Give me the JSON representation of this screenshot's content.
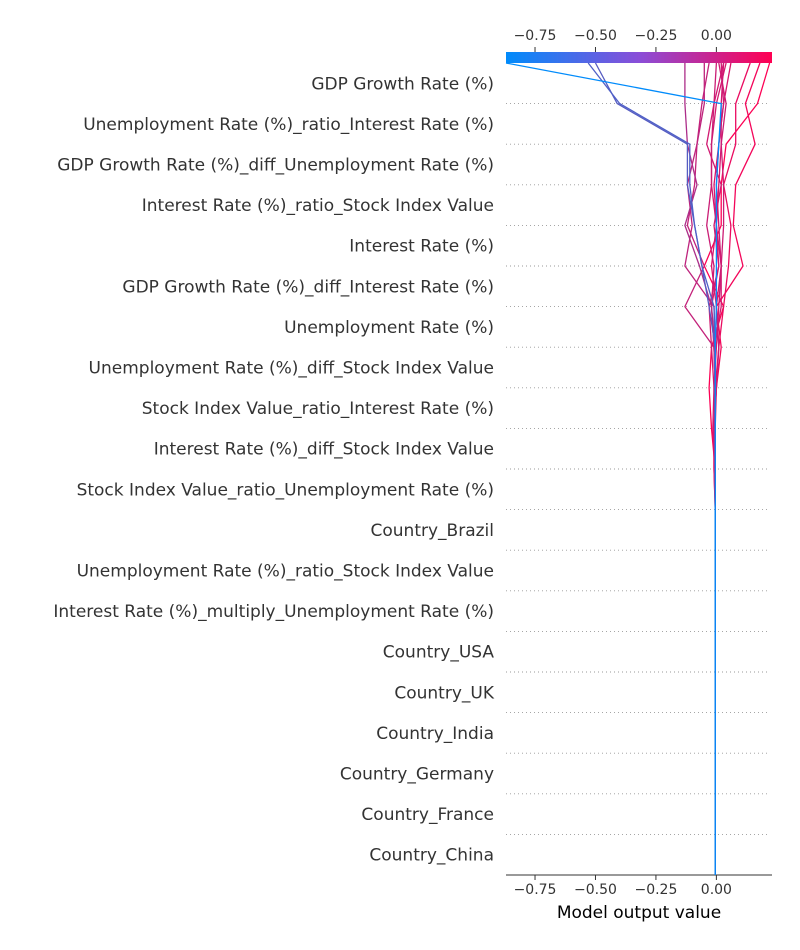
{
  "chart_data": {
    "type": "line",
    "chart_kind": "shap-decision-plot",
    "xlabel": "Model output value",
    "xlim": [
      -0.87,
      0.23
    ],
    "xticks": [
      -0.75,
      -0.5,
      -0.25,
      0.0
    ],
    "xtick_labels": [
      "−0.75",
      "−0.50",
      "−0.25",
      "0.00"
    ],
    "colorbar_ticks": [
      -0.75,
      -0.5,
      -0.25,
      0.0
    ],
    "colorbar_tick_labels": [
      "−0.75",
      "−0.50",
      "−0.25",
      "0.00"
    ],
    "colormap": [
      "#008bfb",
      "#ff0052"
    ],
    "base_value": -0.005,
    "grid": "dotted-horizontal",
    "features": [
      "GDP Growth Rate (%)",
      "Unemployment Rate (%)_ratio_Interest Rate (%)",
      "GDP Growth Rate (%)_diff_Unemployment Rate (%)",
      "Interest Rate (%)_ratio_Stock Index Value",
      "Interest Rate (%)",
      "GDP Growth Rate (%)_diff_Interest Rate (%)",
      "Unemployment Rate (%)",
      "Unemployment Rate (%)_diff_Stock Index Value",
      "Stock Index Value_ratio_Interest Rate (%)",
      "Interest Rate (%)_diff_Stock Index Value",
      "Stock Index Value_ratio_Unemployment Rate (%)",
      "Country_Brazil",
      "Unemployment Rate (%)_ratio_Stock Index Value",
      "Interest Rate (%)_multiply_Unemployment Rate (%)",
      "Country_USA",
      "Country_UK",
      "Country_India",
      "Country_Germany",
      "Country_France",
      "Country_China"
    ],
    "series": [
      {
        "values": [
          -0.005,
          -0.005,
          -0.005,
          -0.005,
          -0.005,
          -0.005,
          -0.005,
          -0.005,
          -0.005,
          -0.005,
          -0.005,
          -0.02,
          -0.03,
          -0.02,
          0.03,
          -0.05,
          0.02,
          0.02,
          0.04,
          0.17,
          0.22
        ]
      },
      {
        "values": [
          -0.005,
          -0.005,
          -0.005,
          -0.005,
          -0.005,
          -0.005,
          -0.005,
          -0.005,
          -0.005,
          -0.005,
          -0.01,
          -0.01,
          0.0,
          0.02,
          0.0,
          0.11,
          0.07,
          0.08,
          0.16,
          0.12,
          0.18
        ]
      },
      {
        "values": [
          -0.005,
          -0.005,
          -0.005,
          -0.005,
          -0.005,
          -0.005,
          -0.005,
          -0.005,
          -0.005,
          -0.005,
          -0.01,
          -0.01,
          -0.005,
          0.01,
          0.03,
          0.05,
          0.06,
          0.03,
          0.08,
          0.08,
          0.14
        ]
      },
      {
        "values": [
          -0.005,
          -0.005,
          -0.005,
          -0.005,
          -0.005,
          -0.005,
          -0.005,
          -0.005,
          -0.005,
          -0.005,
          -0.005,
          -0.015,
          -0.01,
          -0.02,
          -0.03,
          0.01,
          0.0,
          -0.02,
          -0.02,
          0.0,
          0.04
        ]
      },
      {
        "values": [
          -0.005,
          -0.005,
          -0.005,
          -0.005,
          -0.005,
          -0.005,
          -0.005,
          -0.005,
          -0.005,
          -0.005,
          -0.005,
          -0.01,
          0.0,
          0.01,
          0.0,
          -0.02,
          0.0,
          -0.01,
          0.01,
          0.03,
          0.06
        ]
      },
      {
        "values": [
          -0.005,
          -0.005,
          -0.005,
          -0.005,
          -0.005,
          -0.005,
          -0.005,
          -0.005,
          -0.005,
          -0.005,
          -0.005,
          -0.005,
          -0.005,
          -0.01,
          0.02,
          0.02,
          0.0,
          0.01,
          0.02,
          0.02,
          0.03
        ]
      },
      {
        "values": [
          -0.005,
          -0.005,
          -0.005,
          -0.005,
          -0.005,
          -0.005,
          -0.005,
          -0.005,
          -0.005,
          -0.005,
          -0.005,
          -0.005,
          -0.01,
          0.0,
          0.01,
          0.02,
          0.03,
          0.03,
          0.02,
          0.04,
          0.01
        ]
      },
      {
        "values": [
          -0.005,
          -0.005,
          -0.005,
          -0.005,
          -0.005,
          -0.005,
          -0.005,
          -0.005,
          -0.005,
          -0.005,
          -0.005,
          -0.005,
          0.0,
          0.01,
          0.0,
          0.02,
          0.01,
          0.0,
          0.01,
          0.03,
          0.02
        ]
      },
      {
        "values": [
          -0.005,
          -0.005,
          -0.005,
          -0.005,
          -0.005,
          -0.005,
          -0.005,
          -0.005,
          -0.005,
          -0.005,
          -0.005,
          -0.005,
          -0.005,
          -0.01,
          -0.02,
          -0.01,
          -0.04,
          -0.02,
          -0.02,
          -0.01,
          0.0
        ]
      },
      {
        "values": [
          -0.005,
          -0.005,
          -0.005,
          -0.005,
          -0.005,
          -0.005,
          -0.005,
          -0.005,
          -0.005,
          -0.005,
          -0.005,
          -0.005,
          -0.005,
          -0.01,
          -0.02,
          0.01,
          -0.01,
          0.02,
          -0.04,
          -0.01,
          0.03
        ]
      },
      {
        "values": [
          -0.005,
          -0.005,
          -0.005,
          -0.005,
          -0.005,
          -0.005,
          -0.005,
          -0.005,
          -0.005,
          -0.005,
          -0.005,
          -0.005,
          -0.005,
          -0.01,
          -0.13,
          -0.05,
          -0.12,
          -0.09,
          -0.08,
          -0.06,
          -0.03
        ]
      },
      {
        "values": [
          -0.005,
          -0.005,
          -0.005,
          -0.005,
          -0.005,
          -0.005,
          -0.005,
          -0.005,
          -0.005,
          -0.005,
          -0.005,
          -0.005,
          -0.005,
          -0.005,
          -0.01,
          -0.13,
          -0.1,
          -0.12,
          -0.08,
          -0.05,
          -0.05
        ]
      },
      {
        "values": [
          -0.005,
          -0.005,
          -0.005,
          -0.005,
          -0.005,
          -0.005,
          -0.005,
          -0.005,
          -0.005,
          -0.005,
          -0.005,
          -0.005,
          -0.005,
          -0.005,
          -0.02,
          -0.07,
          -0.13,
          -0.08,
          -0.12,
          -0.13,
          -0.13
        ]
      },
      {
        "values": [
          -0.005,
          -0.005,
          -0.005,
          -0.005,
          -0.005,
          -0.005,
          -0.005,
          -0.005,
          -0.005,
          -0.005,
          -0.005,
          -0.005,
          -0.005,
          -0.005,
          -0.03,
          -0.06,
          -0.09,
          -0.12,
          -0.12,
          -0.41,
          -0.5
        ]
      },
      {
        "values": [
          -0.005,
          -0.005,
          -0.005,
          -0.005,
          -0.005,
          -0.005,
          -0.005,
          -0.005,
          -0.005,
          -0.005,
          -0.005,
          -0.005,
          -0.005,
          -0.005,
          -0.01,
          -0.06,
          -0.09,
          -0.11,
          -0.11,
          -0.4,
          -0.53
        ]
      },
      {
        "values": [
          -0.005,
          -0.005,
          -0.005,
          -0.005,
          -0.005,
          -0.005,
          -0.005,
          -0.005,
          -0.005,
          -0.005,
          -0.005,
          -0.005,
          -0.005,
          -0.005,
          0.0,
          0.0,
          0.0,
          0.0,
          0.01,
          0.02,
          -0.87
        ]
      }
    ]
  }
}
